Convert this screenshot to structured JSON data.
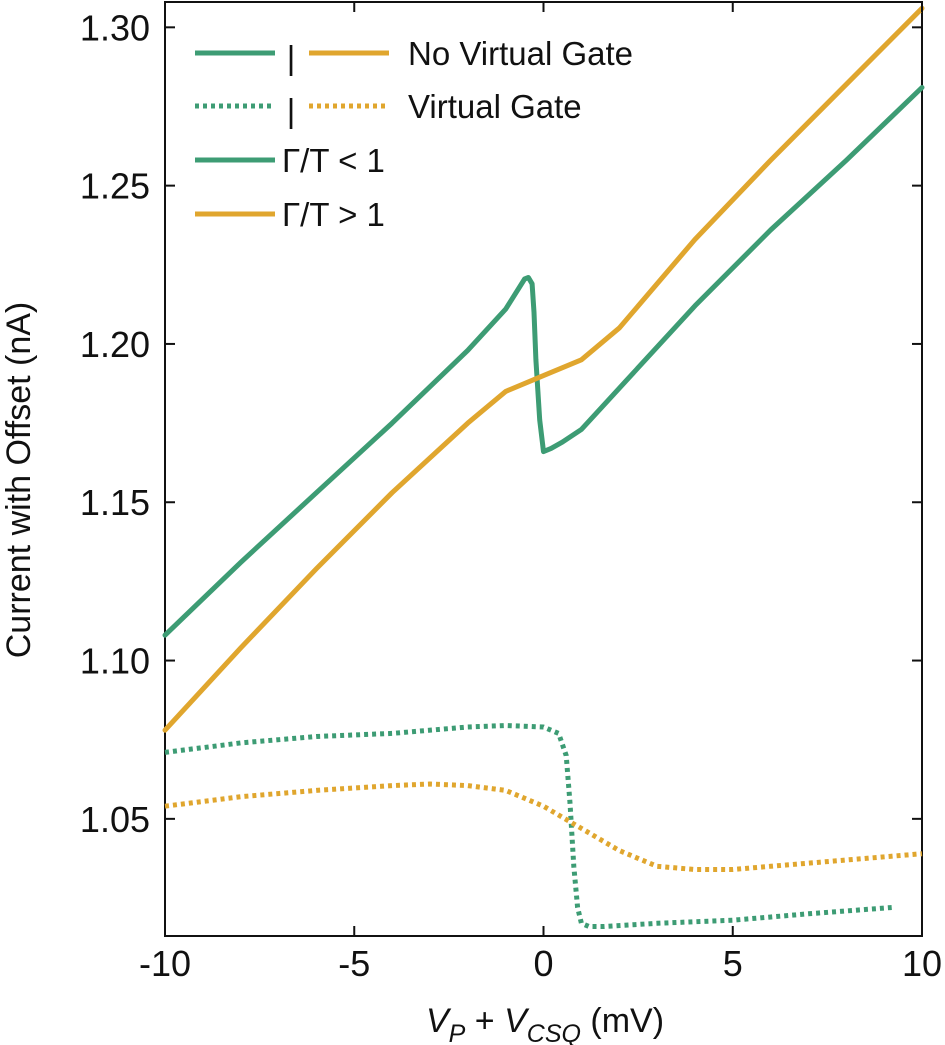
{
  "chart_data": {
    "type": "line",
    "xlabel": {
      "v1": "V",
      "v1_sub": "P",
      "plus": " + ",
      "v2": "V",
      "v2_sub": "CSQ",
      "unit": " (mV)"
    },
    "ylabel": "Current with Offset (nA)",
    "xlim": [
      -10,
      10
    ],
    "ylim": [
      1.013,
      1.308
    ],
    "x_ticks": [
      -10,
      -5,
      0,
      5,
      10
    ],
    "x_tick_labels": [
      "-10",
      "-5",
      "0",
      "5",
      "10"
    ],
    "y_ticks": [
      1.05,
      1.1,
      1.15,
      1.2,
      1.25,
      1.3
    ],
    "y_tick_labels": [
      "1.05",
      "1.10",
      "1.15",
      "1.20",
      "1.25",
      "1.30"
    ],
    "grid": false,
    "legend_position": "top-left",
    "legend": [
      {
        "label": "No Virtual Gate",
        "kind": "pair",
        "style": "solid",
        "colors": [
          "#3d9c74",
          "#e0a62e"
        ],
        "separator": "|"
      },
      {
        "label": "Virtual Gate",
        "kind": "pair",
        "style": "dotted",
        "colors": [
          "#3d9c74",
          "#e0a62e"
        ],
        "separator": "|"
      },
      {
        "label": "Γ/T < 1",
        "kind": "single",
        "style": "solid",
        "colors": [
          "#3d9c74"
        ]
      },
      {
        "label": "Γ/T > 1",
        "kind": "single",
        "style": "solid",
        "colors": [
          "#e0a62e"
        ]
      }
    ],
    "series": [
      {
        "id": "green-no-virtual-gate",
        "color": "#3d9c74",
        "style": "solid",
        "x": [
          -10,
          -8,
          -6,
          -4,
          -2,
          -1,
          -0.5,
          -0.4,
          -0.3,
          -0.25,
          -0.2,
          -0.1,
          0,
          0.2,
          0.5,
          1,
          2,
          4,
          6,
          8,
          10
        ],
        "y": [
          1.108,
          1.131,
          1.153,
          1.175,
          1.198,
          1.211,
          1.2205,
          1.221,
          1.219,
          1.21,
          1.195,
          1.176,
          1.166,
          1.167,
          1.169,
          1.173,
          1.186,
          1.212,
          1.236,
          1.258,
          1.281
        ]
      },
      {
        "id": "orange-no-virtual-gate",
        "color": "#e0a62e",
        "style": "solid",
        "x": [
          -10,
          -8,
          -6,
          -4,
          -2,
          -1,
          0,
          1,
          2,
          4,
          6,
          8,
          10
        ],
        "y": [
          1.078,
          1.104,
          1.129,
          1.153,
          1.175,
          1.185,
          1.19,
          1.195,
          1.205,
          1.233,
          1.258,
          1.282,
          1.306
        ]
      },
      {
        "id": "green-virtual-gate",
        "color": "#3d9c74",
        "style": "dotted",
        "x": [
          -10,
          -8,
          -6,
          -4,
          -2,
          -1,
          0,
          0.4,
          0.6,
          0.7,
          0.8,
          0.9,
          1.0,
          1.2,
          1.6,
          3,
          5,
          7,
          9.2
        ],
        "y": [
          1.071,
          1.074,
          1.076,
          1.077,
          1.079,
          1.0795,
          1.079,
          1.077,
          1.07,
          1.055,
          1.035,
          1.022,
          1.017,
          1.016,
          1.016,
          1.017,
          1.018,
          1.02,
          1.022
        ]
      },
      {
        "id": "orange-virtual-gate",
        "color": "#e0a62e",
        "style": "dotted",
        "x": [
          -10,
          -8,
          -6,
          -4,
          -3,
          -2,
          -1,
          0,
          1,
          2,
          3,
          4,
          5,
          6,
          8,
          10
        ],
        "y": [
          1.054,
          1.057,
          1.059,
          1.0605,
          1.061,
          1.0605,
          1.059,
          1.054,
          1.047,
          1.04,
          1.035,
          1.034,
          1.034,
          1.035,
          1.037,
          1.039
        ]
      }
    ]
  }
}
